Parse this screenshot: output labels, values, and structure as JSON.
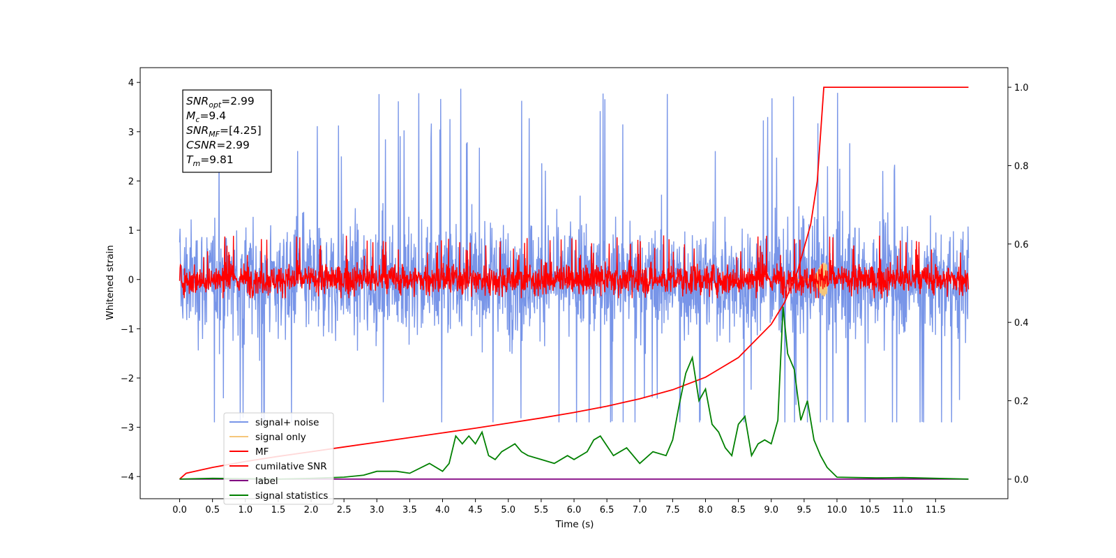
{
  "chart_data": {
    "type": "line",
    "xlabel": "Time (s)",
    "ylabel": "Whitened strain",
    "xlim": [
      -0.6,
      12.6
    ],
    "ylim": [
      -4.45,
      4.3
    ],
    "ylim_right": [
      -0.05,
      1.05
    ],
    "x_ticks": [
      "0.0",
      "0.5",
      "1.0",
      "1.5",
      "2.0",
      "2.5",
      "3.0",
      "3.5",
      "4.0",
      "4.5",
      "5.0",
      "5.5",
      "6.0",
      "6.5",
      "7.0",
      "7.5",
      "8.0",
      "8.5",
      "9.0",
      "9.5",
      "10.0",
      "10.5",
      "11.0",
      "11.5"
    ],
    "y_ticks": [
      "4",
      "3",
      "2",
      "1",
      "0",
      "−1",
      "−2",
      "−3",
      "−4"
    ],
    "y_right_ticks": [
      "1.0",
      "0.8",
      "0.6",
      "0.4",
      "0.2",
      "0.0"
    ],
    "legend_position": "lower-left",
    "stats_box": [
      {
        "name": "SNR",
        "sub": "opt",
        "value": "=2.99"
      },
      {
        "name": "M",
        "sub": "c",
        "value": "=9.4"
      },
      {
        "name": "SNR",
        "sub": "MF",
        "value": "=[4.25]"
      },
      {
        "name": "CSNR",
        "sub": "",
        "value": "=2.99"
      },
      {
        "name": "T",
        "sub": "m",
        "value": "=9.81"
      }
    ],
    "series": [
      {
        "name": "signal+ noise",
        "color": "#7895e8",
        "axis": "left",
        "description_range": [
          -2.9,
          3.9
        ]
      },
      {
        "name": "signal only",
        "color": "#f5c67a",
        "axis": "left"
      },
      {
        "name": "MF",
        "color": "#ff0000",
        "axis": "left"
      },
      {
        "name": "cumilative SNR",
        "color": "#ff0000",
        "axis": "right",
        "x": [
          0.0,
          0.1,
          0.5,
          1.0,
          1.5,
          2.0,
          2.5,
          3.0,
          3.5,
          4.0,
          4.5,
          5.0,
          5.5,
          6.0,
          6.5,
          7.0,
          7.5,
          8.0,
          8.5,
          9.0,
          9.2,
          9.4,
          9.6,
          9.7,
          9.8,
          12.0
        ],
        "y": [
          0.0,
          0.015,
          0.03,
          0.045,
          0.058,
          0.07,
          0.082,
          0.094,
          0.106,
          0.118,
          0.13,
          0.143,
          0.156,
          0.17,
          0.186,
          0.205,
          0.228,
          0.26,
          0.31,
          0.395,
          0.45,
          0.53,
          0.65,
          0.76,
          1.0,
          1.0
        ]
      },
      {
        "name": "label",
        "color": "#800080",
        "axis": "right",
        "x": [
          0.0,
          12.0
        ],
        "y": [
          0.0,
          0.0
        ]
      },
      {
        "name": "signal statistics",
        "color": "#008000",
        "axis": "right",
        "x": [
          0.0,
          0.5,
          1.0,
          1.5,
          2.0,
          2.5,
          2.8,
          3.0,
          3.3,
          3.5,
          3.8,
          4.0,
          4.1,
          4.2,
          4.3,
          4.4,
          4.5,
          4.6,
          4.7,
          4.8,
          4.9,
          5.0,
          5.1,
          5.2,
          5.3,
          5.5,
          5.7,
          5.9,
          6.0,
          6.2,
          6.3,
          6.4,
          6.6,
          6.8,
          7.0,
          7.2,
          7.4,
          7.5,
          7.6,
          7.7,
          7.8,
          7.9,
          8.0,
          8.1,
          8.2,
          8.3,
          8.4,
          8.5,
          8.6,
          8.7,
          8.8,
          8.9,
          9.0,
          9.1,
          9.18,
          9.25,
          9.35,
          9.45,
          9.55,
          9.65,
          9.75,
          9.85,
          10.0,
          10.3,
          10.6,
          11.0,
          11.5,
          12.0
        ],
        "y": [
          0.0,
          0.002,
          0.001,
          0.0,
          0.002,
          0.005,
          0.01,
          0.02,
          0.02,
          0.015,
          0.04,
          0.02,
          0.04,
          0.11,
          0.09,
          0.11,
          0.09,
          0.12,
          0.06,
          0.05,
          0.07,
          0.08,
          0.09,
          0.07,
          0.06,
          0.05,
          0.04,
          0.06,
          0.05,
          0.07,
          0.1,
          0.11,
          0.06,
          0.08,
          0.04,
          0.07,
          0.06,
          0.1,
          0.19,
          0.27,
          0.31,
          0.2,
          0.23,
          0.14,
          0.12,
          0.08,
          0.06,
          0.14,
          0.16,
          0.06,
          0.09,
          0.1,
          0.09,
          0.15,
          0.44,
          0.32,
          0.28,
          0.15,
          0.2,
          0.1,
          0.06,
          0.03,
          0.005,
          0.004,
          0.003,
          0.004,
          0.002,
          0.0
        ]
      }
    ]
  }
}
